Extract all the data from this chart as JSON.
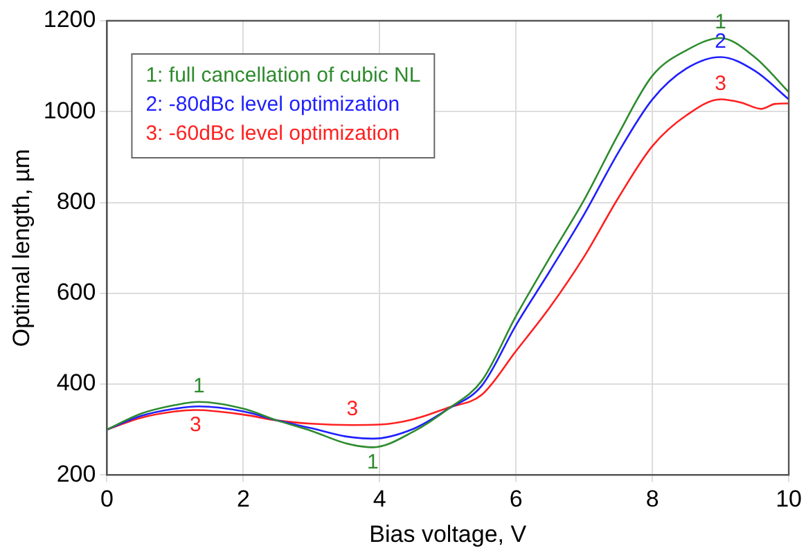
{
  "chart_data": {
    "type": "line",
    "xlabel": "Bias voltage, V",
    "ylabel": "Optimal length, µm",
    "xlim": [
      0,
      10
    ],
    "xticks": [
      0,
      2,
      4,
      6,
      8,
      10
    ],
    "ylim": [
      200,
      1200
    ],
    "yticks": [
      200,
      400,
      600,
      800,
      1000,
      1200
    ],
    "grid": true,
    "legend": "top left",
    "marker": "none",
    "line_style": "solid",
    "series": [
      {
        "name": "1: full cancellation of cubic NL",
        "color": "#2e8b2e",
        "x": [
          0,
          0.5,
          1,
          1.35,
          2,
          2.5,
          3,
          3.5,
          3.9,
          4.5,
          5,
          5.5,
          6,
          6.5,
          7,
          7.5,
          8,
          8.5,
          9,
          9.5,
          10
        ],
        "values": [
          300,
          335,
          354,
          361,
          346,
          320,
          297,
          270,
          261,
          296,
          345,
          408,
          550,
          680,
          806,
          950,
          1079,
          1135,
          1162,
          1120,
          1043
        ]
      },
      {
        "name": "2: -80dBc level optimization",
        "color": "#1f1fff",
        "x": [
          0,
          0.5,
          1,
          1.35,
          2,
          2.5,
          3,
          3.5,
          3.9,
          4.5,
          5,
          5.5,
          6,
          6.5,
          7,
          7.5,
          8,
          8.5,
          9,
          9.5,
          10
        ],
        "values": [
          300,
          330,
          346,
          351,
          340,
          320,
          303,
          285,
          280,
          302,
          345,
          397,
          530,
          650,
          774,
          910,
          1027,
          1095,
          1120,
          1090,
          1027
        ]
      },
      {
        "name": "3: -60dBc level optimization",
        "color": "#ff2020",
        "x": [
          0,
          0.5,
          1,
          1.3,
          2,
          2.5,
          3,
          3.6,
          4,
          4.5,
          5,
          5.5,
          6,
          6.5,
          7,
          7.5,
          8,
          8.5,
          9,
          9.3,
          9.6,
          9.8,
          10
        ],
        "values": [
          300,
          326,
          340,
          343,
          333,
          320,
          313,
          310,
          311,
          323,
          348,
          377,
          473,
          570,
          681,
          810,
          924,
          992,
          1027,
          1020,
          1006,
          1017,
          1018
        ]
      }
    ],
    "annotations": [
      {
        "text": "1",
        "x": 1.35,
        "y": 361
      },
      {
        "text": "3",
        "x": 1.3,
        "y": 343
      },
      {
        "text": "3",
        "x": 3.6,
        "y": 310
      },
      {
        "text": "1",
        "x": 3.9,
        "y": 261
      },
      {
        "text": "1",
        "x": 9,
        "y": 1162
      },
      {
        "text": "2",
        "x": 9,
        "y": 1120
      },
      {
        "text": "3",
        "x": 9,
        "y": 1027
      }
    ]
  }
}
